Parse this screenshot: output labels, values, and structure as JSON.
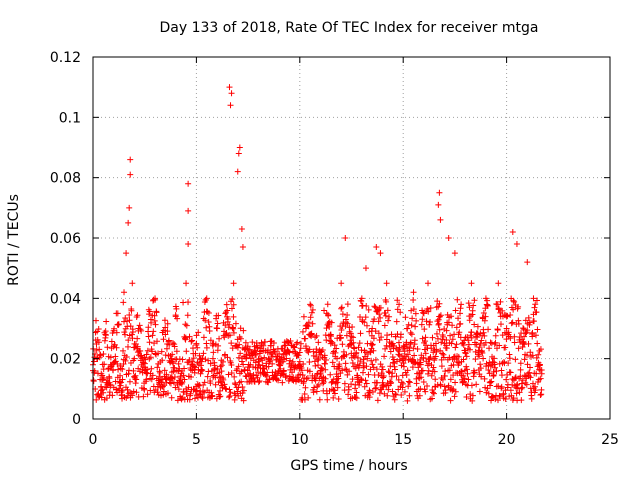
{
  "chart_data": {
    "type": "scatter",
    "title": "Day 133 of 2018, Rate Of TEC Index for receiver mtga",
    "xlabel": "GPS time / hours",
    "ylabel": "ROTI / TECUs",
    "xlim": [
      0,
      25
    ],
    "ylim": [
      0,
      0.12
    ],
    "x_ticks": [
      0,
      5,
      10,
      15,
      20,
      25
    ],
    "x_tick_labels": [
      "0",
      "5",
      "10",
      "15",
      "20",
      "25"
    ],
    "y_ticks": [
      0,
      0.02,
      0.04,
      0.06,
      0.08,
      0.1,
      0.12
    ],
    "y_tick_labels": [
      "0",
      "0.02",
      "0.04",
      "0.06",
      "0.08",
      "0.1",
      "0.12"
    ],
    "grid": true,
    "marker": "+",
    "color": "#ff0000",
    "data_range_hours": [
      0,
      21.7
    ],
    "series": [
      {
        "name": "ROTI",
        "points": [
          [
            0.0,
            0.018
          ],
          [
            0.2,
            0.029
          ],
          [
            0.4,
            0.015
          ],
          [
            0.6,
            0.028
          ],
          [
            0.8,
            0.012
          ],
          [
            1.0,
            0.024
          ],
          [
            1.2,
            0.035
          ],
          [
            1.4,
            0.008
          ],
          [
            1.5,
            0.042
          ],
          [
            1.6,
            0.055
          ],
          [
            1.7,
            0.065
          ],
          [
            1.75,
            0.07
          ],
          [
            1.8,
            0.081
          ],
          [
            1.8,
            0.086
          ],
          [
            1.9,
            0.045
          ],
          [
            2.0,
            0.02
          ],
          [
            2.2,
            0.03
          ],
          [
            2.5,
            0.016
          ],
          [
            2.8,
            0.033
          ],
          [
            3.0,
            0.04
          ],
          [
            3.2,
            0.014
          ],
          [
            3.5,
            0.028
          ],
          [
            3.8,
            0.02
          ],
          [
            4.0,
            0.034
          ],
          [
            4.2,
            0.012
          ],
          [
            4.5,
            0.045
          ],
          [
            4.6,
            0.058
          ],
          [
            4.6,
            0.069
          ],
          [
            4.6,
            0.078
          ],
          [
            4.8,
            0.019
          ],
          [
            5.0,
            0.025
          ],
          [
            5.2,
            0.015
          ],
          [
            5.5,
            0.04
          ],
          [
            5.8,
            0.02
          ],
          [
            6.0,
            0.03
          ],
          [
            6.2,
            0.012
          ],
          [
            6.4,
            0.035
          ],
          [
            6.6,
            0.11
          ],
          [
            6.65,
            0.104
          ],
          [
            6.7,
            0.108
          ],
          [
            6.8,
            0.045
          ],
          [
            7.0,
            0.082
          ],
          [
            7.05,
            0.088
          ],
          [
            7.1,
            0.09
          ],
          [
            7.2,
            0.063
          ],
          [
            7.25,
            0.057
          ],
          [
            7.4,
            0.02
          ],
          [
            7.6,
            0.015
          ],
          [
            7.8,
            0.022
          ],
          [
            8.0,
            0.018
          ],
          [
            8.5,
            0.02
          ],
          [
            9.0,
            0.016
          ],
          [
            9.5,
            0.022
          ],
          [
            10.0,
            0.019
          ],
          [
            10.3,
            0.03
          ],
          [
            10.5,
            0.038
          ],
          [
            10.8,
            0.022
          ],
          [
            11.0,
            0.015
          ],
          [
            11.3,
            0.035
          ],
          [
            11.5,
            0.028
          ],
          [
            11.8,
            0.02
          ],
          [
            12.0,
            0.045
          ],
          [
            12.2,
            0.06
          ],
          [
            12.5,
            0.025
          ],
          [
            12.8,
            0.018
          ],
          [
            13.0,
            0.04
          ],
          [
            13.2,
            0.05
          ],
          [
            13.5,
            0.03
          ],
          [
            13.7,
            0.057
          ],
          [
            13.9,
            0.055
          ],
          [
            14.0,
            0.012
          ],
          [
            14.2,
            0.045
          ],
          [
            14.5,
            0.025
          ],
          [
            14.8,
            0.038
          ],
          [
            15.0,
            0.02
          ],
          [
            15.2,
            0.03
          ],
          [
            15.5,
            0.042
          ],
          [
            15.8,
            0.015
          ],
          [
            16.0,
            0.035
          ],
          [
            16.2,
            0.045
          ],
          [
            16.5,
            0.02
          ],
          [
            16.7,
            0.071
          ],
          [
            16.75,
            0.075
          ],
          [
            16.8,
            0.066
          ],
          [
            17.0,
            0.025
          ],
          [
            17.2,
            0.06
          ],
          [
            17.5,
            0.055
          ],
          [
            17.8,
            0.038
          ],
          [
            18.0,
            0.022
          ],
          [
            18.3,
            0.045
          ],
          [
            18.6,
            0.028
          ],
          [
            19.0,
            0.04
          ],
          [
            19.3,
            0.018
          ],
          [
            19.6,
            0.045
          ],
          [
            20.0,
            0.03
          ],
          [
            20.3,
            0.062
          ],
          [
            20.5,
            0.058
          ],
          [
            20.8,
            0.025
          ],
          [
            21.0,
            0.052
          ],
          [
            21.3,
            0.04
          ],
          [
            21.7,
            0.015
          ]
        ]
      }
    ]
  }
}
